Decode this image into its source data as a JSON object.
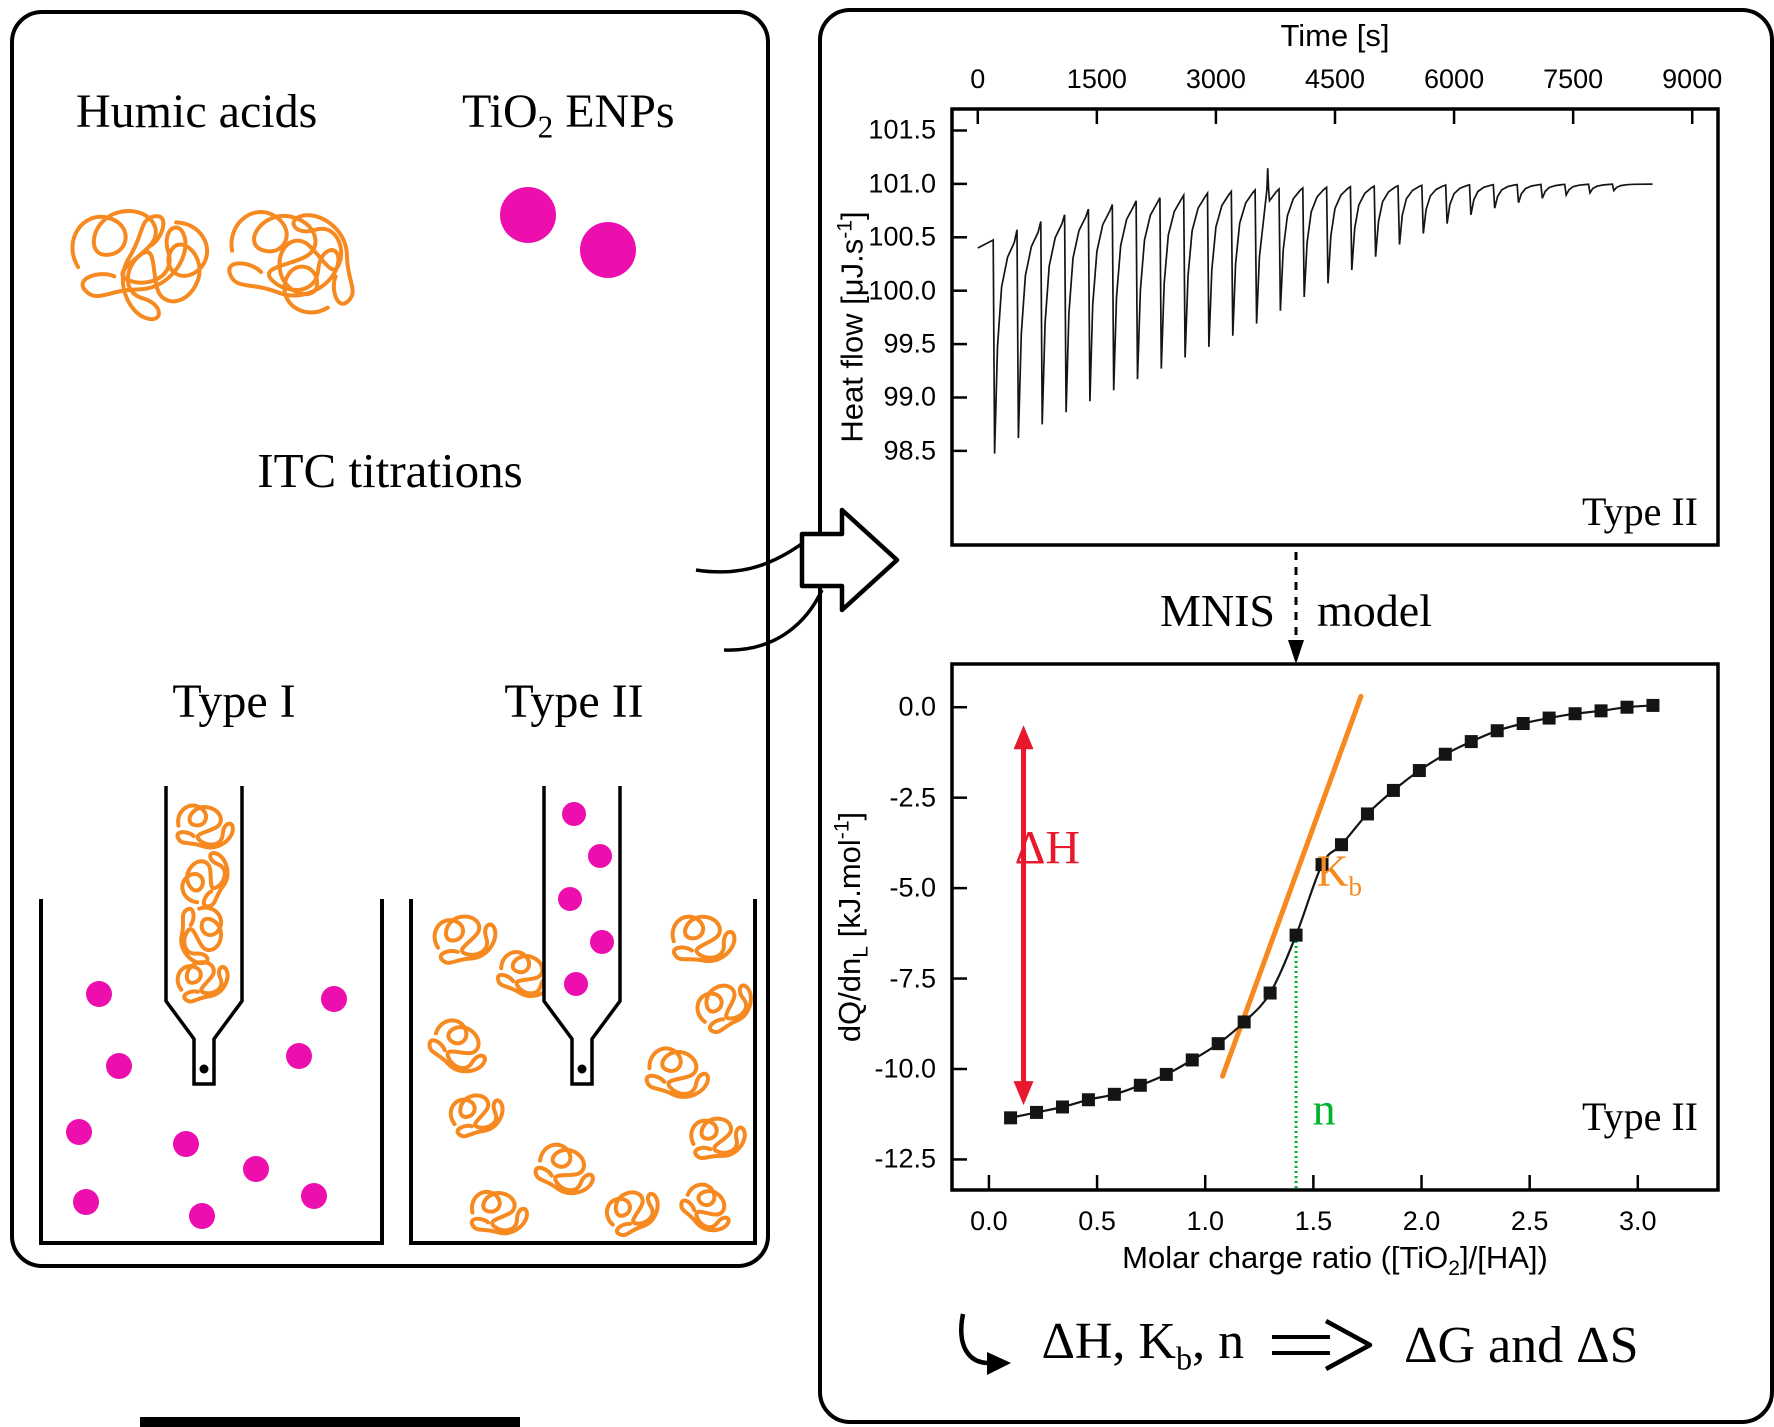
{
  "colors": {
    "orange": "#F6891F",
    "magenta": "#EC0FAE",
    "red": "#E8192C",
    "green": "#00B32C",
    "trace": "#141414"
  },
  "left_panel": {
    "humic_label": "Humic acids",
    "tio2_label": {
      "pre": "TiO",
      "sub": "2",
      "post": " ENPs"
    },
    "itc_label": "ITC titrations",
    "type1_label": "Type I",
    "type2_label": "Type II"
  },
  "right_panel": {
    "mnis_left": "MNIS",
    "mnis_right": "model",
    "formula": {
      "p1_pre": "ΔH, K",
      "p1_sub": "b",
      "p1_post": ", n",
      "p2": "ΔG and ΔS"
    }
  },
  "chart_data": [
    {
      "type": "line",
      "xlabel": "Time [s]",
      "ylabel": "Heat flow [μJ.s-1]",
      "ylabel_parts": {
        "pre": "Heat flow [μJ.s",
        "sup": "-1",
        "post": "]"
      },
      "x_ticks": [
        0,
        1500,
        3000,
        4500,
        6000,
        7500,
        9000
      ],
      "x_tick_labels": [
        "0",
        "1500",
        "3000",
        "4500",
        "6000",
        "7500",
        "9000"
      ],
      "y_ticks": [
        101.5,
        101.0,
        100.5,
        100.0,
        99.5,
        99.0,
        98.5
      ],
      "y_tick_labels": [
        "101.5",
        "101.0",
        "100.5",
        "100.0",
        "99.5",
        "99.0",
        "98.5"
      ],
      "xlim": [
        -350,
        9350
      ],
      "ylim": [
        97.6,
        101.72
      ],
      "annotation": "Type II",
      "baseline": {
        "level": 101.0,
        "drop": 0.6,
        "tau": 1500
      },
      "injections": {
        "times": [
          200,
          500,
          800,
          1100,
          1400,
          1700,
          2000,
          2300,
          2600,
          2900,
          3200,
          3500,
          3800,
          4100,
          4400,
          4700,
          5000,
          5300,
          5600,
          5900,
          6200,
          6500,
          6800,
          7100,
          7400,
          7700,
          8000
        ],
        "depths": [
          2.0,
          1.95,
          1.9,
          1.85,
          1.8,
          1.74,
          1.67,
          1.6,
          1.52,
          1.44,
          1.35,
          1.25,
          1.14,
          1.02,
          0.9,
          0.78,
          0.66,
          0.55,
          0.45,
          0.36,
          0.28,
          0.22,
          0.17,
          0.13,
          0.1,
          0.08,
          0.06
        ]
      },
      "artifact_blip": {
        "t": 3650,
        "height": 0.2
      },
      "trace_end": 8500
    },
    {
      "type": "scatter",
      "xlabel": "Molar charge ratio ([TiO2]/[HA])",
      "xlabel_parts": {
        "pre": "Molar charge ratio ([TiO",
        "sub": "2",
        "post": "]/[HA])"
      },
      "ylabel": "dQ/dnL [kJ.mol-1]",
      "ylabel_parts": {
        "pre": "dQ/dn",
        "sub": "L",
        "mid": " [kJ.mol",
        "sup": "-1",
        "post": "]"
      },
      "x_ticks": [
        0.0,
        0.5,
        1.0,
        1.5,
        2.0,
        2.5,
        3.0
      ],
      "x_tick_labels": [
        "0.0",
        "0.5",
        "1.0",
        "1.5",
        "2.0",
        "2.5",
        "3.0"
      ],
      "y_ticks": [
        0.0,
        -2.5,
        -5.0,
        -7.5,
        -10.0,
        -12.5
      ],
      "y_tick_labels": [
        "0.0",
        "-2.5",
        "-5.0",
        "-7.5",
        "-10.0",
        "-12.5"
      ],
      "xlim": [
        -0.18,
        3.38
      ],
      "ylim": [
        -13.4,
        1.25
      ],
      "annotation": "Type II",
      "points": {
        "x": [
          0.1,
          0.22,
          0.34,
          0.46,
          0.58,
          0.7,
          0.82,
          0.94,
          1.06,
          1.18,
          1.3,
          1.42,
          1.54,
          1.63,
          1.75,
          1.87,
          1.99,
          2.11,
          2.23,
          2.35,
          2.47,
          2.59,
          2.71,
          2.83,
          2.95,
          3.07
        ],
        "y": [
          -11.35,
          -11.2,
          -11.05,
          -10.85,
          -10.7,
          -10.45,
          -10.15,
          -9.75,
          -9.3,
          -8.7,
          -7.9,
          -6.3,
          -4.35,
          -3.8,
          -2.95,
          -2.3,
          -1.75,
          -1.3,
          -0.95,
          -0.65,
          -0.45,
          -0.3,
          -0.18,
          -0.1,
          0.0,
          0.05
        ]
      },
      "annotations": {
        "delta_h": {
          "arrow_x": 0.16,
          "y_top": -0.5,
          "y_bottom": -11.0,
          "label": "ΔH",
          "label_x": 0.27,
          "label_y": -3.9
        },
        "kb": {
          "x1": 1.08,
          "y1": -10.2,
          "x2": 1.72,
          "y2": 0.3,
          "label": "K",
          "label_sub": "b",
          "label_x": 1.62,
          "label_y": -4.6
        },
        "n": {
          "x": 1.42,
          "y_top": -6.3,
          "label": "n",
          "label_x": 1.55,
          "label_y": -11.1
        }
      }
    }
  ]
}
